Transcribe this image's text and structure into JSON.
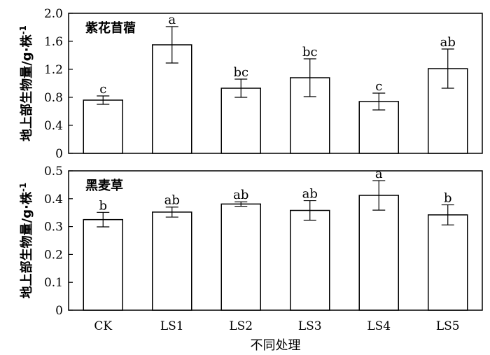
{
  "chart_data": [
    {
      "type": "bar",
      "title": "紫花苜蓿",
      "ylabel": "地上部生物量/g·株",
      "ylabel_sup": "-1",
      "categories": [
        "CK",
        "LS1",
        "LS2",
        "LS3",
        "LS4",
        "LS5"
      ],
      "values": [
        0.76,
        1.55,
        0.93,
        1.08,
        0.74,
        1.21
      ],
      "errors": [
        0.06,
        0.26,
        0.13,
        0.27,
        0.12,
        0.28
      ],
      "labels": [
        "c",
        "a",
        "bc",
        "bc",
        "c",
        "ab"
      ],
      "ylim": [
        0,
        2.0
      ],
      "yticks": [
        "0",
        "0.4",
        "0.8",
        "1.2",
        "1.6",
        "2.0"
      ]
    },
    {
      "type": "bar",
      "title": "黑麦草",
      "ylabel": "地上部生物量/g·株",
      "ylabel_sup": "-1",
      "xlabel": "不同处理",
      "categories": [
        "CK",
        "LS1",
        "LS2",
        "LS3",
        "LS4",
        "LS5"
      ],
      "values": [
        0.325,
        0.352,
        0.381,
        0.358,
        0.412,
        0.342
      ],
      "errors": [
        0.026,
        0.018,
        0.008,
        0.035,
        0.053,
        0.036
      ],
      "labels": [
        "b",
        "ab",
        "ab",
        "ab",
        "a",
        "b"
      ],
      "ylim": [
        0,
        0.5
      ],
      "yticks": [
        "0",
        "0.1",
        "0.2",
        "0.3",
        "0.4",
        "0.5"
      ]
    }
  ]
}
